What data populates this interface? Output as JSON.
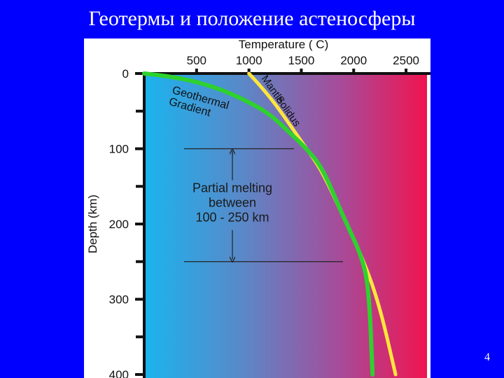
{
  "slide": {
    "title": "Геотермы и положение астеносферы",
    "page_number": "4"
  },
  "chart_data": {
    "type": "line",
    "xlabel": "Temperature ( C)",
    "ylabel": "Depth (km)",
    "x_axis_position": "top",
    "y_axis_inverted": true,
    "xlim": [
      0,
      2700
    ],
    "ylim": [
      0,
      400
    ],
    "x_ticks": [
      500,
      1000,
      1500,
      2000,
      2500
    ],
    "y_ticks": [
      0,
      100,
      200,
      300,
      400
    ],
    "y_minor_ticks": [
      50,
      150,
      250,
      350
    ],
    "background_gradient": [
      "#1ab4ee",
      "#5a88c8",
      "#a84a98",
      "#f01450"
    ],
    "series": [
      {
        "name": "Geothermal Gradient",
        "color": "#2ed12e",
        "x": [
          0,
          250,
          500,
          750,
          1000,
          1200,
          1400,
          1550,
          1700,
          1900,
          2100,
          2150,
          2180
        ],
        "y": [
          0,
          4,
          11,
          22,
          38,
          54,
          80,
          100,
          125,
          190,
          250,
          300,
          400
        ]
      },
      {
        "name": "Mantle Solidus",
        "color": "#ffe63c",
        "x": [
          1000,
          1100,
          1250,
          1400,
          1550,
          1700,
          1900,
          2100,
          2250,
          2400
        ],
        "y": [
          0,
          15,
          40,
          70,
          100,
          130,
          190,
          250,
          310,
          400
        ]
      }
    ],
    "annotations": [
      {
        "text": "Partial melting between 100 - 250 km",
        "range": [
          100,
          250
        ]
      }
    ],
    "grid": false,
    "legend": "none"
  }
}
